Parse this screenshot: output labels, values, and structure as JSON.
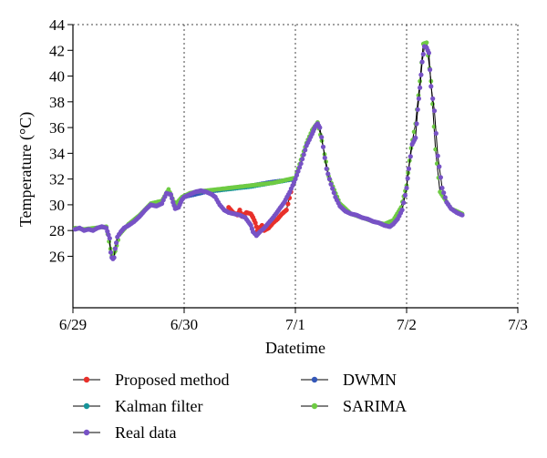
{
  "chart_data": {
    "type": "line",
    "title": "",
    "xlabel": "Datetime",
    "ylabel": "Temperature (°C)",
    "xlim": [
      0,
      4
    ],
    "ylim": [
      22,
      44
    ],
    "xticks": [
      0,
      1,
      2,
      3,
      4
    ],
    "xtick_labels": [
      "6/29",
      "6/30",
      "7/1",
      "7/2",
      "7/3"
    ],
    "yticks": [
      26,
      28,
      30,
      32,
      34,
      36,
      38,
      40,
      42,
      44
    ],
    "ytick_labels": [
      "26",
      "28",
      "30",
      "32",
      "34",
      "36",
      "38",
      "40",
      "42",
      "44"
    ],
    "grid": "dotted vertical at x ticks, top",
    "legend_placement": "below",
    "colors": {
      "proposed": "#e8302a",
      "kalman": "#17949a",
      "real": "#7752c5",
      "dwmn": "#3457b8",
      "sarima": "#6ecb43",
      "line": "#000000"
    },
    "series": [
      {
        "name": "Proposed method",
        "key": "proposed",
        "x": [
          1.4,
          1.44,
          1.48,
          1.5,
          1.52,
          1.56,
          1.6,
          1.62,
          1.64,
          1.66,
          1.7,
          1.72,
          1.76,
          1.8,
          1.84,
          1.88,
          1.92,
          1.96
        ],
        "y": [
          29.8,
          29.4,
          29.2,
          29.6,
          29.1,
          29.4,
          29.3,
          29.0,
          28.6,
          28.0,
          28.4,
          28.0,
          28.2,
          28.6,
          28.9,
          29.3,
          29.6,
          31.0
        ]
      },
      {
        "name": "Kalman filter",
        "key": "kalman",
        "x": [
          1.0,
          1.2,
          1.4,
          1.6,
          1.8,
          2.0
        ],
        "y": [
          30.6,
          31.0,
          31.2,
          31.4,
          31.7,
          32.0
        ]
      },
      {
        "name": "Real data",
        "key": "real",
        "x": [
          0.02,
          0.06,
          0.1,
          0.14,
          0.18,
          0.22,
          0.26,
          0.3,
          0.33,
          0.34,
          0.35,
          0.36,
          0.37,
          0.38,
          0.4,
          0.43,
          0.46,
          0.5,
          0.55,
          0.6,
          0.65,
          0.7,
          0.75,
          0.8,
          0.84,
          0.88,
          0.9,
          0.92,
          0.95,
          0.98,
          1.0,
          1.05,
          1.1,
          1.15,
          1.2,
          1.25,
          1.28,
          1.32,
          1.36,
          1.4,
          1.45,
          1.5,
          1.55,
          1.6,
          1.62,
          1.65,
          1.68,
          1.72,
          1.76,
          1.8,
          1.85,
          1.9,
          1.95,
          2.0,
          2.05,
          2.1,
          2.15,
          2.18,
          2.2,
          2.22,
          2.25,
          2.28,
          2.32,
          2.36,
          2.4,
          2.45,
          2.5,
          2.55,
          2.6,
          2.65,
          2.7,
          2.75,
          2.8,
          2.85,
          2.88,
          2.92,
          2.96,
          3.0,
          3.02,
          3.05,
          3.08,
          3.1,
          3.12,
          3.14,
          3.16,
          3.18,
          3.2,
          3.22,
          3.25,
          3.28,
          3.32,
          3.36,
          3.4,
          3.45,
          3.5
        ],
        "y": [
          28.1,
          28.2,
          28.0,
          28.1,
          28.0,
          28.2,
          28.3,
          28.2,
          27.4,
          26.3,
          25.9,
          25.8,
          25.9,
          26.6,
          27.5,
          27.9,
          28.2,
          28.4,
          28.7,
          29.1,
          29.6,
          30.0,
          29.9,
          30.1,
          30.9,
          30.8,
          30.2,
          29.7,
          29.8,
          30.4,
          30.6,
          30.8,
          31.0,
          31.1,
          31.0,
          30.8,
          30.6,
          30.0,
          29.6,
          29.4,
          29.3,
          29.2,
          29.0,
          28.4,
          27.9,
          27.6,
          27.9,
          28.2,
          28.6,
          29.0,
          29.6,
          30.2,
          31.0,
          32.0,
          33.2,
          34.6,
          35.5,
          36.1,
          36.3,
          36.0,
          34.5,
          32.8,
          31.6,
          30.6,
          29.9,
          29.5,
          29.3,
          29.2,
          29.0,
          28.9,
          28.7,
          28.6,
          28.4,
          28.3,
          28.5,
          28.9,
          29.6,
          31.3,
          32.8,
          34.7,
          35.2,
          37.4,
          39.1,
          41.1,
          42.3,
          42.2,
          41.8,
          39.2,
          37.3,
          33.8,
          31.3,
          30.2,
          29.7,
          29.4,
          29.2
        ]
      },
      {
        "name": "DWMN",
        "key": "dwmn",
        "x": [
          1.0,
          1.2,
          1.4,
          1.6,
          1.8,
          2.0
        ],
        "y": [
          30.6,
          31.0,
          31.3,
          31.5,
          31.8,
          32.0
        ]
      },
      {
        "name": "SARIMA",
        "key": "sarima",
        "x": [
          0.02,
          0.1,
          0.2,
          0.3,
          0.35,
          0.38,
          0.42,
          0.5,
          0.6,
          0.7,
          0.8,
          0.86,
          0.92,
          0.98,
          1.05,
          1.1,
          1.2,
          1.3,
          1.4,
          1.5,
          1.6,
          1.7,
          1.8,
          1.9,
          2.0,
          2.05,
          2.1,
          2.15,
          2.2,
          2.25,
          2.3,
          2.4,
          2.5,
          2.6,
          2.7,
          2.8,
          2.88,
          2.95,
          3.0,
          3.04,
          3.08,
          3.12,
          3.15,
          3.18,
          3.22,
          3.26,
          3.3,
          3.4,
          3.5
        ],
        "y": [
          28.2,
          28.1,
          28.2,
          28.3,
          26.0,
          26.4,
          27.7,
          28.5,
          29.2,
          30.1,
          30.3,
          31.2,
          30.0,
          30.6,
          30.9,
          31.0,
          31.1,
          31.2,
          31.3,
          31.4,
          31.5,
          31.6,
          31.7,
          31.9,
          32.1,
          33.5,
          34.8,
          35.8,
          36.4,
          34.5,
          32.2,
          30.1,
          29.3,
          29.0,
          28.7,
          28.5,
          28.8,
          29.8,
          31.5,
          34.4,
          36.3,
          39.6,
          42.5,
          42.6,
          39.6,
          34.3,
          31.0,
          29.7,
          29.3
        ]
      }
    ]
  }
}
